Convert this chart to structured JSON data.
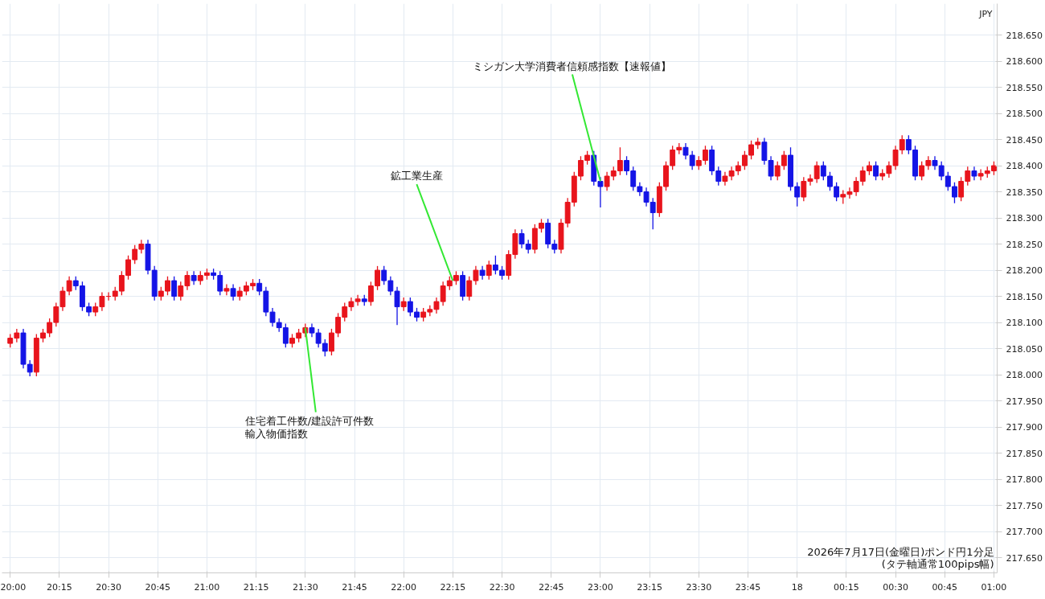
{
  "chart_data": {
    "type": "candlestick",
    "ylabel": "JPY",
    "x": [
      "2026-07-17T20:00",
      "2026-07-17T20:02",
      "2026-07-17T20:04",
      "2026-07-17T20:06",
      "2026-07-17T20:08",
      "2026-07-17T20:10",
      "2026-07-17T20:12",
      "2026-07-17T20:14",
      "2026-07-17T20:16",
      "2026-07-17T20:18",
      "2026-07-17T20:20",
      "2026-07-17T20:22",
      "2026-07-17T20:24",
      "2026-07-17T20:26",
      "2026-07-17T20:28",
      "2026-07-17T20:30",
      "2026-07-17T20:32",
      "2026-07-17T20:34",
      "2026-07-17T20:36",
      "2026-07-17T20:38",
      "2026-07-17T20:40",
      "2026-07-17T20:42",
      "2026-07-17T20:44",
      "2026-07-17T20:46",
      "2026-07-17T20:48",
      "2026-07-17T20:50",
      "2026-07-17T20:52",
      "2026-07-17T20:54",
      "2026-07-17T20:56",
      "2026-07-17T20:58",
      "2026-07-17T21:00",
      "2026-07-17T21:02",
      "2026-07-17T21:04",
      "2026-07-17T21:06",
      "2026-07-17T21:08",
      "2026-07-17T21:10",
      "2026-07-17T21:12",
      "2026-07-17T21:14",
      "2026-07-17T21:16",
      "2026-07-17T21:18",
      "2026-07-17T21:20",
      "2026-07-17T21:22",
      "2026-07-17T21:24",
      "2026-07-17T21:26",
      "2026-07-17T21:28",
      "2026-07-17T21:30",
      "2026-07-17T21:32",
      "2026-07-17T21:34",
      "2026-07-17T21:36",
      "2026-07-17T21:38",
      "2026-07-17T21:40",
      "2026-07-17T21:42",
      "2026-07-17T21:44",
      "2026-07-17T21:46",
      "2026-07-17T21:48",
      "2026-07-17T21:50",
      "2026-07-17T21:52",
      "2026-07-17T21:54",
      "2026-07-17T21:56",
      "2026-07-17T21:58",
      "2026-07-17T22:00",
      "2026-07-17T22:02",
      "2026-07-17T22:04",
      "2026-07-17T22:06",
      "2026-07-17T22:08",
      "2026-07-17T22:10",
      "2026-07-17T22:12",
      "2026-07-17T22:14",
      "2026-07-17T22:16",
      "2026-07-17T22:18",
      "2026-07-17T22:20",
      "2026-07-17T22:22",
      "2026-07-17T22:24",
      "2026-07-17T22:26",
      "2026-07-17T22:28",
      "2026-07-17T22:30",
      "2026-07-17T22:32",
      "2026-07-17T22:34",
      "2026-07-17T22:36",
      "2026-07-17T22:38",
      "2026-07-17T22:40",
      "2026-07-17T22:42",
      "2026-07-17T22:44",
      "2026-07-17T22:46",
      "2026-07-17T22:48",
      "2026-07-17T22:50",
      "2026-07-17T22:52",
      "2026-07-17T22:54",
      "2026-07-17T22:56",
      "2026-07-17T22:58",
      "2026-07-17T23:00",
      "2026-07-17T23:02",
      "2026-07-17T23:04",
      "2026-07-17T23:06",
      "2026-07-17T23:08",
      "2026-07-17T23:10",
      "2026-07-17T23:12",
      "2026-07-17T23:14",
      "2026-07-17T23:16",
      "2026-07-17T23:18",
      "2026-07-17T23:20",
      "2026-07-17T23:22",
      "2026-07-17T23:24",
      "2026-07-17T23:26",
      "2026-07-17T23:28",
      "2026-07-17T23:30",
      "2026-07-17T23:32",
      "2026-07-17T23:34",
      "2026-07-17T23:36",
      "2026-07-17T23:38",
      "2026-07-17T23:40",
      "2026-07-17T23:42",
      "2026-07-17T23:44",
      "2026-07-17T23:46",
      "2026-07-17T23:48",
      "2026-07-17T23:50",
      "2026-07-17T23:52",
      "2026-07-17T23:54",
      "2026-07-17T23:56",
      "2026-07-17T23:58",
      "2026-07-18T00:00",
      "2026-07-18T00:02",
      "2026-07-18T00:04",
      "2026-07-18T00:06",
      "2026-07-18T00:08",
      "2026-07-18T00:10",
      "2026-07-18T00:12",
      "2026-07-18T00:14",
      "2026-07-18T00:16",
      "2026-07-18T00:18",
      "2026-07-18T00:20",
      "2026-07-18T00:22",
      "2026-07-18T00:24",
      "2026-07-18T00:26",
      "2026-07-18T00:28",
      "2026-07-18T00:30",
      "2026-07-18T00:32",
      "2026-07-18T00:34",
      "2026-07-18T00:36",
      "2026-07-18T00:38",
      "2026-07-18T00:40",
      "2026-07-18T00:42",
      "2026-07-18T00:44",
      "2026-07-18T00:46",
      "2026-07-18T00:48",
      "2026-07-18T00:50",
      "2026-07-18T00:52",
      "2026-07-18T00:54",
      "2026-07-18T00:56",
      "2026-07-18T00:58",
      "2026-07-18T01:00"
    ],
    "ohlc": [
      [
        218.06,
        218.078,
        218.052,
        218.07
      ],
      [
        218.07,
        218.088,
        218.062,
        218.08
      ],
      [
        218.08,
        218.088,
        218.012,
        218.02
      ],
      [
        218.02,
        218.028,
        217.997,
        218.005
      ],
      [
        218.005,
        218.078,
        217.997,
        218.07
      ],
      [
        218.07,
        218.088,
        218.062,
        218.08
      ],
      [
        218.08,
        218.108,
        218.072,
        218.1
      ],
      [
        218.1,
        218.138,
        218.092,
        218.13
      ],
      [
        218.13,
        218.168,
        218.122,
        218.16
      ],
      [
        218.16,
        218.188,
        218.152,
        218.18
      ],
      [
        218.18,
        218.188,
        218.162,
        218.17
      ],
      [
        218.17,
        218.178,
        218.122,
        218.13
      ],
      [
        218.13,
        218.138,
        218.112,
        218.12
      ],
      [
        218.12,
        218.138,
        218.112,
        218.13
      ],
      [
        218.13,
        218.158,
        218.122,
        218.15
      ],
      [
        218.15,
        218.158,
        218.142,
        218.15
      ],
      [
        218.15,
        218.168,
        218.142,
        218.16
      ],
      [
        218.16,
        218.198,
        218.152,
        218.19
      ],
      [
        218.19,
        218.228,
        218.182,
        218.22
      ],
      [
        218.22,
        218.248,
        218.212,
        218.24
      ],
      [
        218.24,
        218.258,
        218.232,
        218.25
      ],
      [
        218.25,
        218.258,
        218.192,
        218.2
      ],
      [
        218.2,
        218.208,
        218.142,
        218.15
      ],
      [
        218.15,
        218.168,
        218.142,
        218.16
      ],
      [
        218.16,
        218.188,
        218.152,
        218.18
      ],
      [
        218.18,
        218.188,
        218.142,
        218.15
      ],
      [
        218.15,
        218.178,
        218.142,
        218.17
      ],
      [
        218.17,
        218.198,
        218.162,
        218.19
      ],
      [
        218.19,
        218.198,
        218.172,
        218.18
      ],
      [
        218.18,
        218.198,
        218.172,
        218.19
      ],
      [
        218.19,
        218.203,
        218.182,
        218.195
      ],
      [
        218.195,
        218.203,
        218.182,
        218.19
      ],
      [
        218.19,
        218.198,
        218.152,
        218.16
      ],
      [
        218.16,
        218.173,
        218.152,
        218.165
      ],
      [
        218.165,
        218.173,
        218.142,
        218.15
      ],
      [
        218.15,
        218.168,
        218.142,
        218.16
      ],
      [
        218.16,
        218.178,
        218.152,
        218.17
      ],
      [
        218.17,
        218.183,
        218.162,
        218.175
      ],
      [
        218.175,
        218.183,
        218.152,
        218.16
      ],
      [
        218.16,
        218.168,
        218.112,
        218.12
      ],
      [
        218.12,
        218.128,
        218.092,
        218.1
      ],
      [
        218.1,
        218.108,
        218.082,
        218.09
      ],
      [
        218.09,
        218.098,
        218.052,
        218.06
      ],
      [
        218.06,
        218.078,
        218.052,
        218.07
      ],
      [
        218.07,
        218.088,
        218.062,
        218.08
      ],
      [
        218.08,
        218.098,
        218.072,
        218.09
      ],
      [
        218.09,
        218.098,
        218.072,
        218.08
      ],
      [
        218.08,
        218.088,
        218.052,
        218.06
      ],
      [
        218.06,
        218.068,
        218.035,
        218.045
      ],
      [
        218.045,
        218.088,
        218.037,
        218.08
      ],
      [
        218.08,
        218.118,
        218.072,
        218.11
      ],
      [
        218.11,
        218.138,
        218.102,
        218.13
      ],
      [
        218.13,
        218.148,
        218.122,
        218.14
      ],
      [
        218.14,
        218.153,
        218.132,
        218.145
      ],
      [
        218.145,
        218.153,
        218.132,
        218.14
      ],
      [
        218.14,
        218.178,
        218.132,
        218.17
      ],
      [
        218.17,
        218.208,
        218.162,
        218.2
      ],
      [
        218.2,
        218.208,
        218.172,
        218.18
      ],
      [
        218.18,
        218.188,
        218.152,
        218.16
      ],
      [
        218.16,
        218.168,
        218.095,
        218.13
      ],
      [
        218.13,
        218.148,
        218.122,
        218.14
      ],
      [
        218.14,
        218.148,
        218.112,
        218.12
      ],
      [
        218.12,
        218.128,
        218.102,
        218.11
      ],
      [
        218.11,
        218.128,
        218.102,
        218.12
      ],
      [
        218.12,
        218.133,
        218.112,
        218.125
      ],
      [
        218.125,
        218.148,
        218.117,
        218.14
      ],
      [
        218.14,
        218.178,
        218.132,
        218.17
      ],
      [
        218.17,
        218.188,
        218.162,
        218.18
      ],
      [
        218.18,
        218.198,
        218.172,
        218.19
      ],
      [
        218.19,
        218.198,
        218.142,
        218.15
      ],
      [
        218.15,
        218.188,
        218.142,
        218.18
      ],
      [
        218.18,
        218.208,
        218.172,
        218.2
      ],
      [
        218.2,
        218.208,
        218.182,
        218.19
      ],
      [
        218.19,
        218.218,
        218.182,
        218.21
      ],
      [
        218.21,
        218.228,
        218.192,
        218.2
      ],
      [
        218.2,
        218.208,
        218.182,
        218.19
      ],
      [
        218.19,
        218.238,
        218.182,
        218.23
      ],
      [
        218.23,
        218.278,
        218.222,
        218.27
      ],
      [
        218.27,
        218.278,
        218.242,
        218.25
      ],
      [
        218.25,
        218.258,
        218.232,
        218.24
      ],
      [
        218.24,
        218.288,
        218.232,
        218.28
      ],
      [
        218.28,
        218.298,
        218.272,
        218.29
      ],
      [
        218.29,
        218.298,
        218.242,
        218.25
      ],
      [
        218.25,
        218.258,
        218.232,
        218.24
      ],
      [
        218.24,
        218.298,
        218.232,
        218.29
      ],
      [
        218.29,
        218.338,
        218.282,
        218.33
      ],
      [
        218.33,
        218.388,
        218.322,
        218.38
      ],
      [
        218.38,
        218.418,
        218.372,
        218.41
      ],
      [
        218.41,
        218.428,
        218.402,
        218.42
      ],
      [
        218.42,
        218.428,
        218.362,
        218.37
      ],
      [
        218.37,
        218.378,
        218.32,
        218.36
      ],
      [
        218.36,
        218.388,
        218.352,
        218.38
      ],
      [
        218.38,
        218.398,
        218.372,
        218.39
      ],
      [
        218.39,
        218.435,
        218.382,
        218.41
      ],
      [
        218.41,
        218.418,
        218.382,
        218.39
      ],
      [
        218.39,
        218.398,
        218.352,
        218.36
      ],
      [
        218.36,
        218.368,
        218.342,
        218.35
      ],
      [
        218.35,
        218.358,
        218.322,
        218.33
      ],
      [
        218.33,
        218.338,
        218.278,
        218.31
      ],
      [
        218.31,
        218.368,
        218.302,
        218.36
      ],
      [
        218.36,
        218.408,
        218.352,
        218.4
      ],
      [
        218.4,
        218.438,
        218.392,
        218.43
      ],
      [
        218.43,
        218.443,
        218.422,
        218.435
      ],
      [
        218.435,
        218.443,
        218.412,
        218.42
      ],
      [
        218.42,
        218.428,
        218.392,
        218.4
      ],
      [
        218.4,
        218.418,
        218.392,
        218.41
      ],
      [
        218.41,
        218.438,
        218.402,
        218.43
      ],
      [
        218.43,
        218.438,
        218.382,
        218.39
      ],
      [
        218.39,
        218.398,
        218.362,
        218.37
      ],
      [
        218.37,
        218.388,
        218.362,
        218.38
      ],
      [
        218.38,
        218.398,
        218.372,
        218.39
      ],
      [
        218.39,
        218.408,
        218.382,
        218.4
      ],
      [
        218.4,
        218.428,
        218.392,
        218.42
      ],
      [
        218.42,
        218.448,
        218.412,
        218.44
      ],
      [
        218.44,
        218.453,
        218.432,
        218.445
      ],
      [
        218.445,
        218.453,
        218.402,
        218.41
      ],
      [
        218.41,
        218.418,
        218.372,
        218.38
      ],
      [
        218.38,
        218.408,
        218.372,
        218.4
      ],
      [
        218.4,
        218.428,
        218.392,
        218.42
      ],
      [
        218.42,
        218.435,
        218.352,
        218.36
      ],
      [
        218.36,
        218.368,
        218.322,
        218.34
      ],
      [
        218.34,
        218.378,
        218.332,
        218.37
      ],
      [
        218.37,
        218.383,
        218.362,
        218.375
      ],
      [
        218.375,
        218.408,
        218.367,
        218.4
      ],
      [
        218.4,
        218.408,
        218.372,
        218.38
      ],
      [
        218.38,
        218.388,
        218.352,
        218.36
      ],
      [
        218.36,
        218.368,
        218.332,
        218.34
      ],
      [
        218.34,
        218.353,
        218.327,
        218.345
      ],
      [
        218.345,
        218.358,
        218.337,
        218.35
      ],
      [
        218.35,
        218.378,
        218.342,
        218.37
      ],
      [
        218.37,
        218.398,
        218.362,
        218.39
      ],
      [
        218.39,
        218.408,
        218.382,
        218.4
      ],
      [
        218.4,
        218.408,
        218.372,
        218.38
      ],
      [
        218.38,
        218.393,
        218.372,
        218.385
      ],
      [
        218.385,
        218.408,
        218.377,
        218.4
      ],
      [
        218.4,
        218.438,
        218.392,
        218.43
      ],
      [
        218.43,
        218.458,
        218.422,
        218.45
      ],
      [
        218.45,
        218.458,
        218.422,
        218.43
      ],
      [
        218.43,
        218.438,
        218.372,
        218.38
      ],
      [
        218.38,
        218.408,
        218.372,
        218.4
      ],
      [
        218.4,
        218.418,
        218.392,
        218.41
      ],
      [
        218.41,
        218.418,
        218.392,
        218.4
      ],
      [
        218.4,
        218.408,
        218.372,
        218.38
      ],
      [
        218.38,
        218.388,
        218.352,
        218.36
      ],
      [
        218.36,
        218.368,
        218.328,
        218.34
      ],
      [
        218.34,
        218.378,
        218.332,
        218.37
      ],
      [
        218.37,
        218.398,
        218.362,
        218.39
      ],
      [
        218.39,
        218.398,
        218.372,
        218.38
      ],
      [
        218.38,
        218.393,
        218.372,
        218.385
      ],
      [
        218.385,
        218.398,
        218.377,
        218.39
      ],
      [
        218.39,
        218.408,
        218.382,
        218.4
      ]
    ],
    "colors": [
      "#e8141c",
      "#e8141c",
      "#1414e6",
      "#1414e6",
      "#e8141c",
      "#e8141c",
      "#e8141c",
      "#e8141c",
      "#e8141c",
      "#e8141c",
      "#1414e6",
      "#1414e6",
      "#1414e6",
      "#e8141c",
      "#e8141c",
      "#e8141c",
      "#e8141c",
      "#e8141c",
      "#e8141c",
      "#e8141c",
      "#e8141c",
      "#1414e6",
      "#1414e6",
      "#e8141c",
      "#e8141c",
      "#1414e6",
      "#e8141c",
      "#e8141c",
      "#1414e6",
      "#e8141c",
      "#e8141c",
      "#1414e6",
      "#1414e6",
      "#e8141c",
      "#1414e6",
      "#e8141c",
      "#e8141c",
      "#e8141c",
      "#1414e6",
      "#1414e6",
      "#1414e6",
      "#1414e6",
      "#1414e6",
      "#e8141c",
      "#e8141c",
      "#e8141c",
      "#1414e6",
      "#1414e6",
      "#1414e6",
      "#e8141c",
      "#e8141c",
      "#e8141c",
      "#e8141c",
      "#e8141c",
      "#1414e6",
      "#e8141c",
      "#e8141c",
      "#1414e6",
      "#1414e6",
      "#1414e6",
      "#e8141c",
      "#1414e6",
      "#1414e6",
      "#e8141c",
      "#e8141c",
      "#e8141c",
      "#e8141c",
      "#e8141c",
      "#e8141c",
      "#1414e6",
      "#e8141c",
      "#e8141c",
      "#1414e6",
      "#e8141c",
      "#1414e6",
      "#1414e6",
      "#e8141c",
      "#e8141c",
      "#1414e6",
      "#1414e6",
      "#e8141c",
      "#e8141c",
      "#1414e6",
      "#1414e6",
      "#e8141c",
      "#e8141c",
      "#e8141c",
      "#e8141c",
      "#e8141c",
      "#1414e6",
      "#1414e6",
      "#e8141c",
      "#e8141c",
      "#e8141c",
      "#1414e6",
      "#1414e6",
      "#1414e6",
      "#1414e6",
      "#1414e6",
      "#e8141c",
      "#e8141c",
      "#e8141c",
      "#e8141c",
      "#1414e6",
      "#1414e6",
      "#e8141c",
      "#e8141c",
      "#1414e6",
      "#1414e6",
      "#e8141c",
      "#e8141c",
      "#e8141c",
      "#e8141c",
      "#e8141c",
      "#e8141c",
      "#1414e6",
      "#1414e6",
      "#e8141c",
      "#e8141c",
      "#1414e6",
      "#1414e6",
      "#e8141c",
      "#e8141c",
      "#e8141c",
      "#1414e6",
      "#1414e6",
      "#1414e6",
      "#e8141c",
      "#e8141c",
      "#e8141c",
      "#e8141c",
      "#e8141c",
      "#1414e6",
      "#e8141c",
      "#e8141c",
      "#e8141c",
      "#e8141c",
      "#1414e6",
      "#1414e6",
      "#e8141c",
      "#e8141c",
      "#1414e6",
      "#1414e6",
      "#1414e6",
      "#1414e6",
      "#e8141c",
      "#e8141c",
      "#1414e6",
      "#e8141c",
      "#e8141c",
      "#e8141c"
    ],
    "xlim": [
      "2026-07-17T19:57:30",
      "2026-07-18T01:01"
    ],
    "xticks": [
      {
        "value": "2026-07-17T20:00",
        "label": "20:00"
      },
      {
        "value": "2026-07-17T20:15",
        "label": "20:15"
      },
      {
        "value": "2026-07-17T20:30",
        "label": "20:30"
      },
      {
        "value": "2026-07-17T20:45",
        "label": "20:45"
      },
      {
        "value": "2026-07-17T21:00",
        "label": "21:00"
      },
      {
        "value": "2026-07-17T21:15",
        "label": "21:15"
      },
      {
        "value": "2026-07-17T21:30",
        "label": "21:30"
      },
      {
        "value": "2026-07-17T21:45",
        "label": "21:45"
      },
      {
        "value": "2026-07-17T22:00",
        "label": "22:00"
      },
      {
        "value": "2026-07-17T22:15",
        "label": "22:15"
      },
      {
        "value": "2026-07-17T22:30",
        "label": "22:30"
      },
      {
        "value": "2026-07-17T22:45",
        "label": "22:45"
      },
      {
        "value": "2026-07-17T23:00",
        "label": "23:00"
      },
      {
        "value": "2026-07-17T23:15",
        "label": "23:15"
      },
      {
        "value": "2026-07-17T23:30",
        "label": "23:30"
      },
      {
        "value": "2026-07-17T23:45",
        "label": "23:45"
      },
      {
        "value": "2026-07-18T00:00",
        "label": "18"
      },
      {
        "value": "2026-07-18T00:15",
        "label": "00:15"
      },
      {
        "value": "2026-07-18T00:30",
        "label": "00:30"
      },
      {
        "value": "2026-07-18T00:45",
        "label": "00:45"
      },
      {
        "value": "2026-07-18T01:00",
        "label": "01:00"
      }
    ],
    "ylim": [
      217.621,
      218.71
    ],
    "yticks": [
      {
        "value": 217.65,
        "label": "217.650"
      },
      {
        "value": 217.7,
        "label": "217.700"
      },
      {
        "value": 217.75,
        "label": "217.750"
      },
      {
        "value": 217.8,
        "label": "217.800"
      },
      {
        "value": 217.85,
        "label": "217.850"
      },
      {
        "value": 217.9,
        "label": "217.900"
      },
      {
        "value": 217.95,
        "label": "217.950"
      },
      {
        "value": 218.0,
        "label": "218.000"
      },
      {
        "value": 218.05,
        "label": "218.050"
      },
      {
        "value": 218.1,
        "label": "218.100"
      },
      {
        "value": 218.15,
        "label": "218.150"
      },
      {
        "value": 218.2,
        "label": "218.200"
      },
      {
        "value": 218.25,
        "label": "218.250"
      },
      {
        "value": 218.3,
        "label": "218.300"
      },
      {
        "value": 218.35,
        "label": "218.350"
      },
      {
        "value": 218.4,
        "label": "218.400"
      },
      {
        "value": 218.45,
        "label": "218.450"
      },
      {
        "value": 218.5,
        "label": "218.500"
      },
      {
        "value": 218.55,
        "label": "218.550"
      },
      {
        "value": 218.6,
        "label": "218.600"
      },
      {
        "value": 218.65,
        "label": "218.650"
      }
    ],
    "grid": true,
    "annotations": [
      "2026年7月17日(金曜日)ポンド円1分足",
      "(タテ軸通常100pips幅)",
      {
        "text": "住宅着工件数/建設許可件数",
        "x": "2026-07-17T21:30",
        "y": 218.09
      },
      "輸入物価指数",
      {
        "text": "鉱工業生産",
        "x": "2026-07-17T22:15",
        "y": 218.18
      },
      {
        "text": "ミシガン大学消費者信頼感指数【速報値】",
        "x": "2026-07-17T23:00",
        "y": 218.37
      }
    ]
  }
}
